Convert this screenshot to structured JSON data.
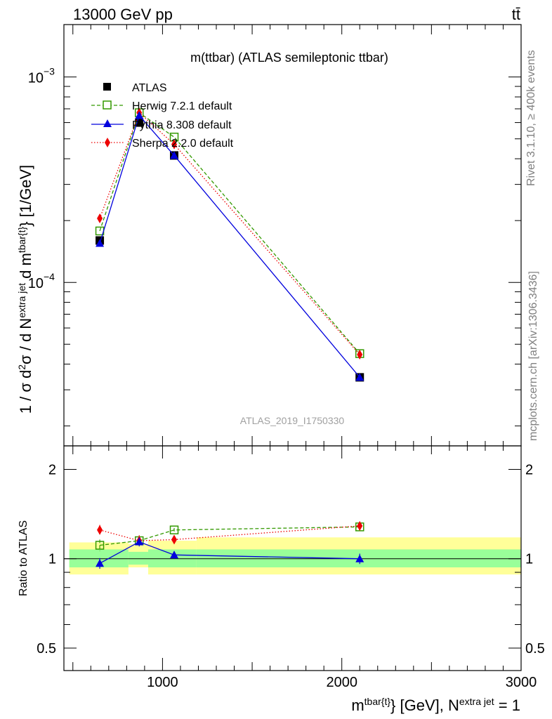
{
  "header": {
    "energy_label": "13000 GeV pp",
    "process_label": "tt̄"
  },
  "side_labels": {
    "rivet": "Rivet 3.1.10, ≥ 400k events",
    "mcplots": "mcplots.cern.ch [arXiv:1306.3436]"
  },
  "colors": {
    "atlas": "#000000",
    "herwig": "#339900",
    "pythia": "#0000dd",
    "sherpa": "#ee0000",
    "band_outer": "#ffff99",
    "band_inner": "#99ff99"
  },
  "chart_data": [
    {
      "type": "line",
      "panel": "main",
      "title": "m(ttbar) (ATLAS semileptonic ttbar)",
      "watermark": "ATLAS_2019_I1750330",
      "ylabel": "1 / σ d²σ / d N^{extra jet} d m^{tbar{t}} [1/GeV]",
      "y_scale": "log",
      "ylim": [
        1.6e-05,
        0.0018
      ],
      "xlim": [
        450,
        3000
      ],
      "yticks": [
        {
          "value": 0.0001,
          "label": "10",
          "exp": "−4"
        },
        {
          "value": 0.001,
          "label": "10",
          "exp": "−3"
        }
      ],
      "legend_position": "top-left",
      "series": [
        {
          "name": "ATLAS",
          "style": "square-filled",
          "x": [
            650,
            870,
            1065,
            2100
          ],
          "y": [
            0.00016,
            0.0006,
            0.000415,
            3.45e-05
          ]
        },
        {
          "name": "Herwig 7.2.1 default",
          "style": "square-open-dashed",
          "x": [
            650,
            870,
            1065,
            2100
          ],
          "y": [
            0.000178,
            0.00067,
            0.00051,
            4.5e-05
          ]
        },
        {
          "name": "Pythia 8.308 default",
          "style": "triangle-solid",
          "x": [
            650,
            870,
            1065,
            2100
          ],
          "y": [
            0.000155,
            0.00065,
            0.000415,
            3.45e-05
          ]
        },
        {
          "name": "Sherpa 2.2.0 default",
          "style": "diamond-dotted",
          "x": [
            650,
            870,
            1065,
            2100
          ],
          "y": [
            0.000205,
            0.00067,
            0.00047,
            4.45e-05
          ]
        }
      ]
    },
    {
      "type": "line",
      "panel": "ratio",
      "ylabel": "Ratio to ATLAS",
      "xlabel": "m^{tbar{t}} [GeV], N^{extra jet} = 1",
      "y_scale": "log",
      "ylim": [
        0.42,
        2.4
      ],
      "xlim": [
        450,
        3000
      ],
      "xticks": [
        1000,
        2000,
        3000
      ],
      "yticks": [
        0.5,
        1,
        2
      ],
      "bands": [
        {
          "x0": 480,
          "x1": 810,
          "outer": [
            0.885,
            1.135
          ],
          "inner": [
            0.935,
            1.075
          ]
        },
        {
          "x0": 810,
          "x1": 920,
          "outer": [
            0.935,
            1.12
          ],
          "inner": [
            0.955,
            1.055
          ]
        },
        {
          "x0": 920,
          "x1": 1190,
          "outer": [
            0.885,
            1.15
          ],
          "inner": [
            0.935,
            1.075
          ]
        },
        {
          "x0": 1190,
          "x1": 3000,
          "outer": [
            0.885,
            1.18
          ],
          "inner": [
            0.935,
            1.075
          ]
        }
      ],
      "series": [
        {
          "name": "Herwig 7.2.1 default",
          "x": [
            650,
            870,
            1065,
            2100
          ],
          "y": [
            1.11,
            1.15,
            1.25,
            1.28
          ],
          "err": [
            0.05,
            0.04,
            0.02,
            0.05
          ]
        },
        {
          "name": "Pythia 8.308 default",
          "x": [
            650,
            870,
            1065,
            2100
          ],
          "y": [
            0.965,
            1.14,
            1.03,
            1.0
          ],
          "err": [
            0.04,
            0.04,
            0.03,
            0.04
          ]
        },
        {
          "name": "Sherpa 2.2.0 default",
          "x": [
            650,
            870,
            1065,
            2100
          ],
          "y": [
            1.25,
            1.15,
            1.16,
            1.29
          ],
          "err": [
            0.05,
            0.05,
            0.03,
            0.04
          ]
        }
      ]
    }
  ]
}
